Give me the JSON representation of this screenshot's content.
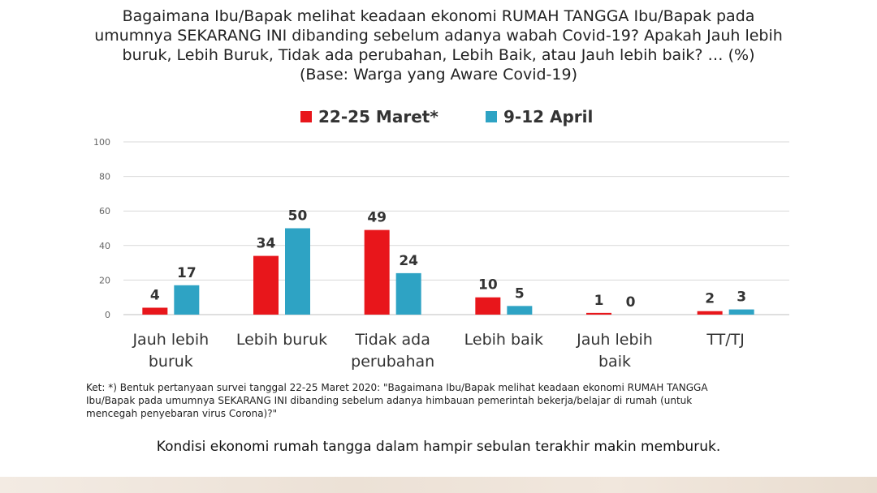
{
  "title_lines": [
    "Bagaimana Ibu/Bapak melihat keadaan ekonomi RUMAH TANGGA Ibu/Bapak pada",
    "umumnya SEKARANG INI dibanding sebelum adanya wabah Covid-19? Apakah Jauh lebih",
    "buruk, Lebih Buruk, Tidak ada perubahan, Lebih Baik, atau Jauh lebih baik? … (%)",
    "(Base: Warga yang Aware Covid-19)"
  ],
  "note_lines": [
    "Ket: *) Bentuk pertanyaan survei tanggal 22-25 Maret 2020: \"Bagaimana Ibu/Bapak melihat keadaan ekonomi RUMAH TANGGA",
    "Ibu/Bapak pada umumnya SEKARANG INI dibanding sebelum adanya himbauan pemerintah bekerja/belajar di rumah (untuk",
    "mencegah penyebaran virus Corona)?\""
  ],
  "caption": "Kondisi ekonomi rumah tangga dalam hampir sebulan terakhir makin memburuk.",
  "colors": {
    "series1": "#e8161b",
    "series2": "#2ea3c4",
    "grid": "#d9d9d9",
    "tick": "#666666"
  },
  "chart_data": {
    "type": "bar",
    "title": "Bagaimana Ibu/Bapak melihat keadaan ekonomi RUMAH TANGGA Ibu/Bapak pada umumnya SEKARANG INI dibanding sebelum adanya wabah Covid-19? Apakah Jauh lebih buruk, Lebih Buruk, Tidak ada perubahan, Lebih Baik, atau Jauh lebih baik? … (%)",
    "subtitle": "(Base: Warga yang Aware Covid-19)",
    "categories": [
      [
        "Jauh lebih",
        "buruk"
      ],
      [
        "Lebih buruk"
      ],
      [
        "Tidak ada",
        "perubahan"
      ],
      [
        "Lebih baik"
      ],
      [
        "Jauh lebih",
        "baik"
      ],
      [
        "TT/TJ"
      ]
    ],
    "series": [
      {
        "name": "22-25 Maret*",
        "values": [
          4,
          34,
          49,
          10,
          1,
          2
        ]
      },
      {
        "name": "9-12 April",
        "values": [
          17,
          50,
          24,
          5,
          0,
          3
        ]
      }
    ],
    "yticks": [
      0,
      20,
      40,
      60,
      80,
      100
    ],
    "ylim": [
      0,
      100
    ],
    "grid": true,
    "legend_position": "top-center"
  }
}
